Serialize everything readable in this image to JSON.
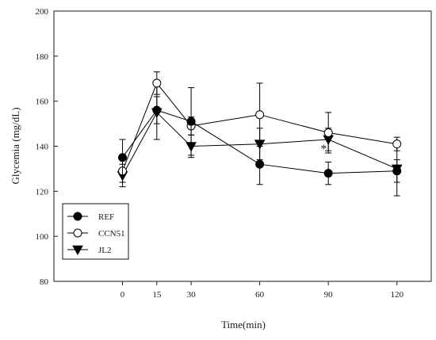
{
  "chart_data": {
    "type": "line",
    "xlabel": "Time(min)",
    "ylabel": "Glycemia (mg/dL)",
    "x": [
      0,
      15,
      30,
      60,
      90,
      120
    ],
    "xlim": [
      -30,
      135
    ],
    "ylim": [
      80,
      200
    ],
    "xticks": [
      "0",
      "15",
      "30",
      "60",
      "90",
      "120"
    ],
    "yticks": [
      "80",
      "100",
      "120",
      "140",
      "160",
      "180",
      "200"
    ],
    "grid": false,
    "legend_position": "bottom-left",
    "series": [
      {
        "name": "REF",
        "marker": "filled-circle",
        "values": [
          135,
          156,
          151,
          132,
          128,
          129
        ],
        "errors": [
          8,
          6,
          15,
          9,
          5,
          5
        ]
      },
      {
        "name": "CCN51",
        "marker": "open-circle",
        "values": [
          129,
          168,
          149,
          154,
          146,
          141
        ],
        "errors": [
          5,
          5,
          4,
          14,
          9,
          3
        ]
      },
      {
        "name": "JL2",
        "marker": "down-triangle",
        "values": [
          127,
          155,
          140,
          141,
          143,
          130
        ],
        "errors": [
          5,
          12,
          5,
          7,
          5,
          12
        ]
      }
    ],
    "annotations": [
      {
        "text": "*",
        "x": 88,
        "y": 137
      }
    ]
  }
}
